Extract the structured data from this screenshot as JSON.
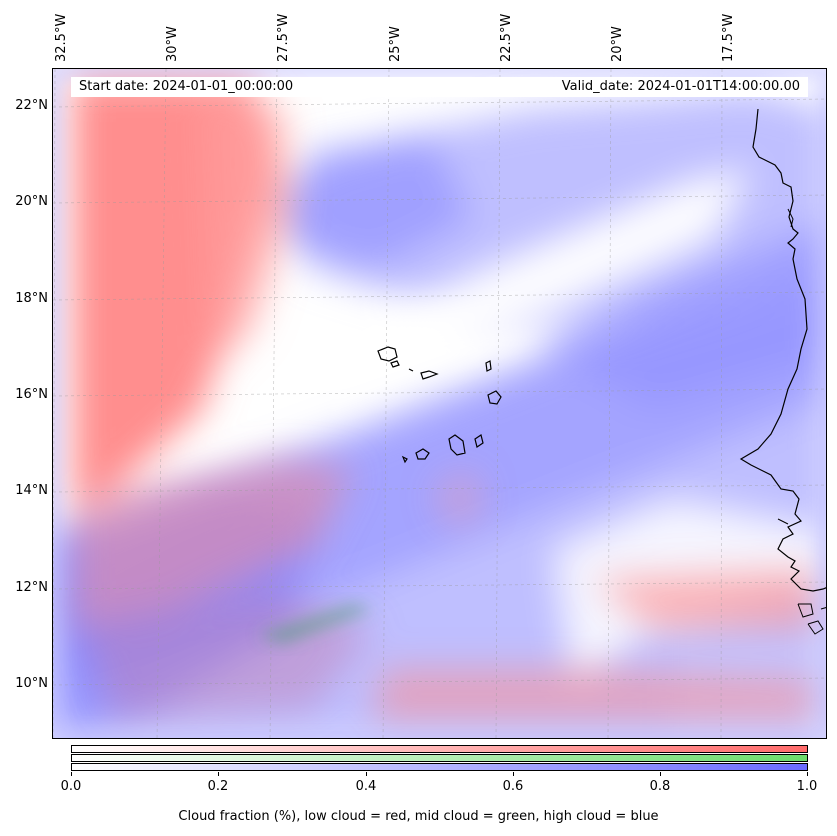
{
  "map": {
    "start_label": "Start date: 2024-01-01_00:00:00",
    "valid_label": "Valid_date: 2024-01-01T14:00:00.00",
    "lon_labels": [
      "32.5°W",
      "30°W",
      "27.5°W",
      "25°W",
      "22.5°W",
      "20°W",
      "17.5°W"
    ],
    "lat_labels": [
      "22°N",
      "20°N",
      "18°N",
      "16°N",
      "14°N",
      "12°N",
      "10°N"
    ],
    "colors": {
      "low": "#ff6b6b",
      "mid": "#6bdc6b",
      "high": "#6b6bff"
    }
  },
  "colorbar": {
    "ticks": [
      "0.0",
      "0.2",
      "0.4",
      "0.6",
      "0.8",
      "1.0"
    ],
    "label": "Cloud fraction (%), low cloud = red, mid cloud = green, high cloud = blue"
  }
}
